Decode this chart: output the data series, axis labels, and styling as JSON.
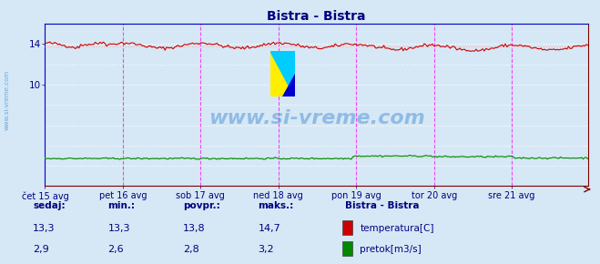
{
  "title": "Bistra - Bistra",
  "title_color": "#000080",
  "title_fontsize": 10,
  "bg_color": "#d6e8f5",
  "plot_bg_color": "#d6e8f5",
  "grid_color": "#c8c8c8",
  "axis_color": "#800000",
  "tick_color": "#000080",
  "watermark_text": "www.si-vreme.com",
  "watermark_color": "#4a90d9",
  "watermark_alpha": 0.5,
  "ylim": [
    0,
    16
  ],
  "yticks": [
    10,
    14
  ],
  "n_points": 336,
  "temp_min": 13.3,
  "temp_max": 14.7,
  "temp_avg": 13.8,
  "flow_min": 2.6,
  "flow_max": 3.2,
  "flow_avg": 2.8,
  "temp_color": "#cc0000",
  "temp_avg_color": "#ffaaaa",
  "flow_color": "#008800",
  "flow_avg_color": "#aaddaa",
  "vline_color": "#ff00ff",
  "x_tick_labels": [
    "čet 15 avg",
    "pet 16 avg",
    "sob 17 avg",
    "ned 18 avg",
    "pon 19 avg",
    "tor 20 avg",
    "sre 21 avg"
  ],
  "x_tick_positions": [
    0,
    48,
    96,
    144,
    192,
    240,
    288
  ],
  "legend_title": "Bistra - Bistra",
  "legend_title_color": "#000080",
  "legend_items": [
    "temperatura[C]",
    "pretok[m3/s]"
  ],
  "legend_colors": [
    "#cc0000",
    "#008800"
  ],
  "stat_labels": [
    "sedaj:",
    "min.:",
    "povpr.:",
    "maks.:"
  ],
  "stat_temp": [
    13.3,
    13.3,
    13.8,
    14.7
  ],
  "stat_flow": [
    2.9,
    2.6,
    2.8,
    3.2
  ],
  "stat_color": "#000080",
  "sidebar_text": "www.si-vreme.com",
  "sidebar_color": "#4a90d9"
}
